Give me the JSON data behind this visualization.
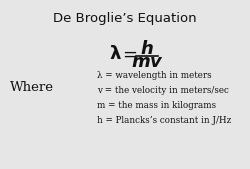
{
  "title": "De Broglie’s Equation",
  "where_label": "Where",
  "definitions": [
    "λ = wavelength in meters",
    "v = the velocity in meters/sec",
    "m = the mass in kilograms",
    "h = Plancks’s constant in J/Hz"
  ],
  "bg_color": "#e6e6e6",
  "text_color": "#111111",
  "title_fontsize": 9.5,
  "formula_fontsize": 13,
  "def_fontsize": 6.3,
  "where_fontsize": 9.5
}
